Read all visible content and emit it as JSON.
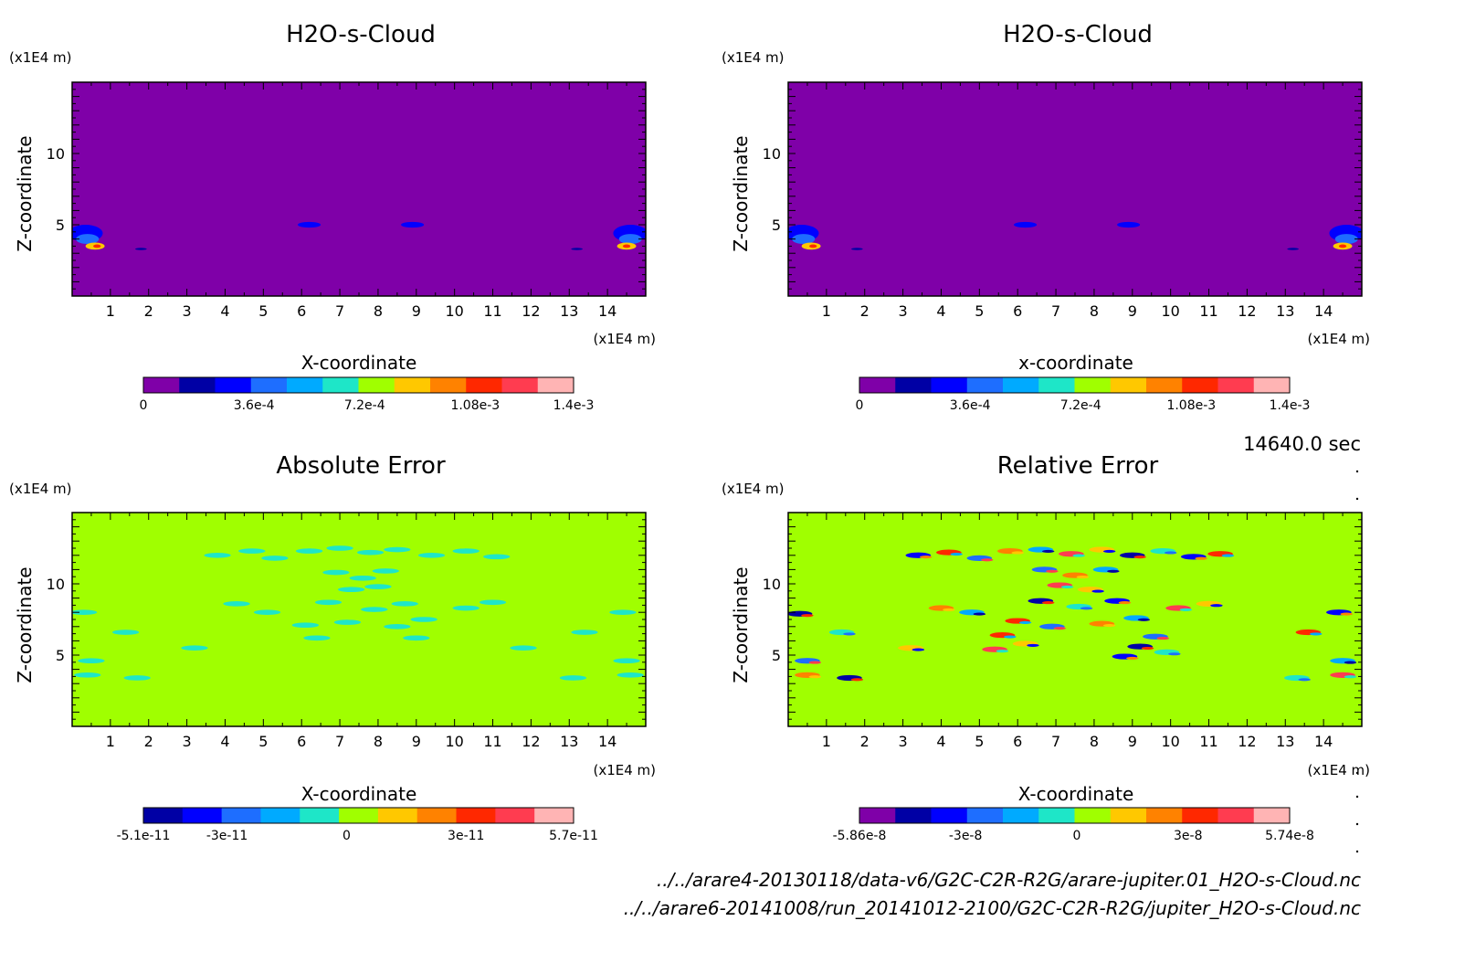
{
  "time_label": "14640.0 sec",
  "files": [
    "../../arare4-20130118/data-v6/G2C-C2R-R2G/arare-jupiter.01_H2O-s-Cloud.nc",
    "../../arare6-20141008/run_20141012-2100/G2C-C2R-R2G/jupiter_H2O-s-Cloud.nc"
  ],
  "chart_data": [
    {
      "type": "heatmap",
      "title": "H2O-s-Cloud",
      "xlabel": "X-coordinate",
      "ylabel": "Z-coordinate",
      "x_unit": "(x1E4 m)",
      "y_unit": "(x1E4 m)",
      "xlim": [
        0,
        15
      ],
      "ylim": [
        0,
        15
      ],
      "x_ticks": [
        "1",
        "2",
        "3",
        "4",
        "5",
        "6",
        "7",
        "8",
        "9",
        "10",
        "11",
        "12",
        "13",
        "14"
      ],
      "y_ticks": [
        "5",
        "10"
      ],
      "background_color": "#7f00a8",
      "colorbar": {
        "colors": [
          "#7f00a8",
          "#0000a5",
          "#0000ff",
          "#1e6eff",
          "#00aaff",
          "#1ee6c8",
          "#a0ff00",
          "#ffc800",
          "#ff8200",
          "#ff2800",
          "#ff3c50",
          "#ffb4b4"
        ],
        "labels": [
          "0",
          "3.6e-4",
          "7.2e-4",
          "1.08e-3",
          "1.4e-3"
        ],
        "label_values": [
          0,
          0.00036,
          0.00072,
          0.00108,
          0.0014
        ],
        "range": [
          0,
          0.0014
        ]
      }
    },
    {
      "type": "heatmap",
      "title": "H2O-s-Cloud",
      "xlabel": "x-coordinate",
      "ylabel": "Z-coordinate",
      "x_unit": "(x1E4 m)",
      "y_unit": "(x1E4 m)",
      "xlim": [
        0,
        15
      ],
      "ylim": [
        0,
        15
      ],
      "x_ticks": [
        "1",
        "2",
        "3",
        "4",
        "5",
        "6",
        "7",
        "8",
        "9",
        "10",
        "11",
        "12",
        "13",
        "14"
      ],
      "y_ticks": [
        "5",
        "10"
      ],
      "background_color": "#7f00a8",
      "colorbar": {
        "colors": [
          "#7f00a8",
          "#0000a5",
          "#0000ff",
          "#1e6eff",
          "#00aaff",
          "#1ee6c8",
          "#a0ff00",
          "#ffc800",
          "#ff8200",
          "#ff2800",
          "#ff3c50",
          "#ffb4b4"
        ],
        "labels": [
          "0",
          "3.6e-4",
          "7.2e-4",
          "1.08e-3",
          "1.4e-3"
        ],
        "label_values": [
          0,
          0.00036,
          0.00072,
          0.00108,
          0.0014
        ],
        "range": [
          0,
          0.0014
        ]
      }
    },
    {
      "type": "heatmap",
      "title": "Absolute Error",
      "xlabel": "X-coordinate",
      "ylabel": "Z-coordinate",
      "x_unit": "(x1E4 m)",
      "y_unit": "(x1E4 m)",
      "xlim": [
        0,
        15
      ],
      "ylim": [
        0,
        15
      ],
      "x_ticks": [
        "1",
        "2",
        "3",
        "4",
        "5",
        "6",
        "7",
        "8",
        "9",
        "10",
        "11",
        "12",
        "13",
        "14"
      ],
      "y_ticks": [
        "5",
        "10"
      ],
      "background_color": "#a0ff00",
      "colorbar": {
        "colors": [
          "#0000a5",
          "#0000ff",
          "#1e6eff",
          "#00aaff",
          "#1ee6c8",
          "#a0ff00",
          "#ffc800",
          "#ff8200",
          "#ff2800",
          "#ff3c50",
          "#ffb4b4"
        ],
        "labels": [
          "-5.1e-11",
          "-3e-11",
          "0",
          "3e-11",
          "5.7e-11"
        ],
        "label_values": [
          -5.1e-11,
          -3e-11,
          0,
          3e-11,
          5.7e-11
        ],
        "range": [
          -5.1e-11,
          5.7e-11
        ]
      }
    },
    {
      "type": "heatmap",
      "title": "Relative Error",
      "xlabel": "X-coordinate",
      "ylabel": "Z-coordinate",
      "x_unit": "(x1E4 m)",
      "y_unit": "(x1E4 m)",
      "xlim": [
        0,
        15
      ],
      "ylim": [
        0,
        15
      ],
      "x_ticks": [
        "1",
        "2",
        "3",
        "4",
        "5",
        "6",
        "7",
        "8",
        "9",
        "10",
        "11",
        "12",
        "13",
        "14"
      ],
      "y_ticks": [
        "5",
        "10"
      ],
      "background_color": "#a0ff00",
      "colorbar": {
        "colors": [
          "#7f00a8",
          "#0000a5",
          "#0000ff",
          "#1e6eff",
          "#00aaff",
          "#1ee6c8",
          "#a0ff00",
          "#ffc800",
          "#ff8200",
          "#ff2800",
          "#ff3c50",
          "#ffb4b4"
        ],
        "labels": [
          "-5.86e-8",
          "-3e-8",
          "0",
          "3e-8",
          "5.74e-8"
        ],
        "label_values": [
          -5.86e-08,
          -3e-08,
          0,
          3e-08,
          5.74e-08
        ],
        "range": [
          -5.86e-08,
          5.74e-08
        ]
      }
    }
  ]
}
